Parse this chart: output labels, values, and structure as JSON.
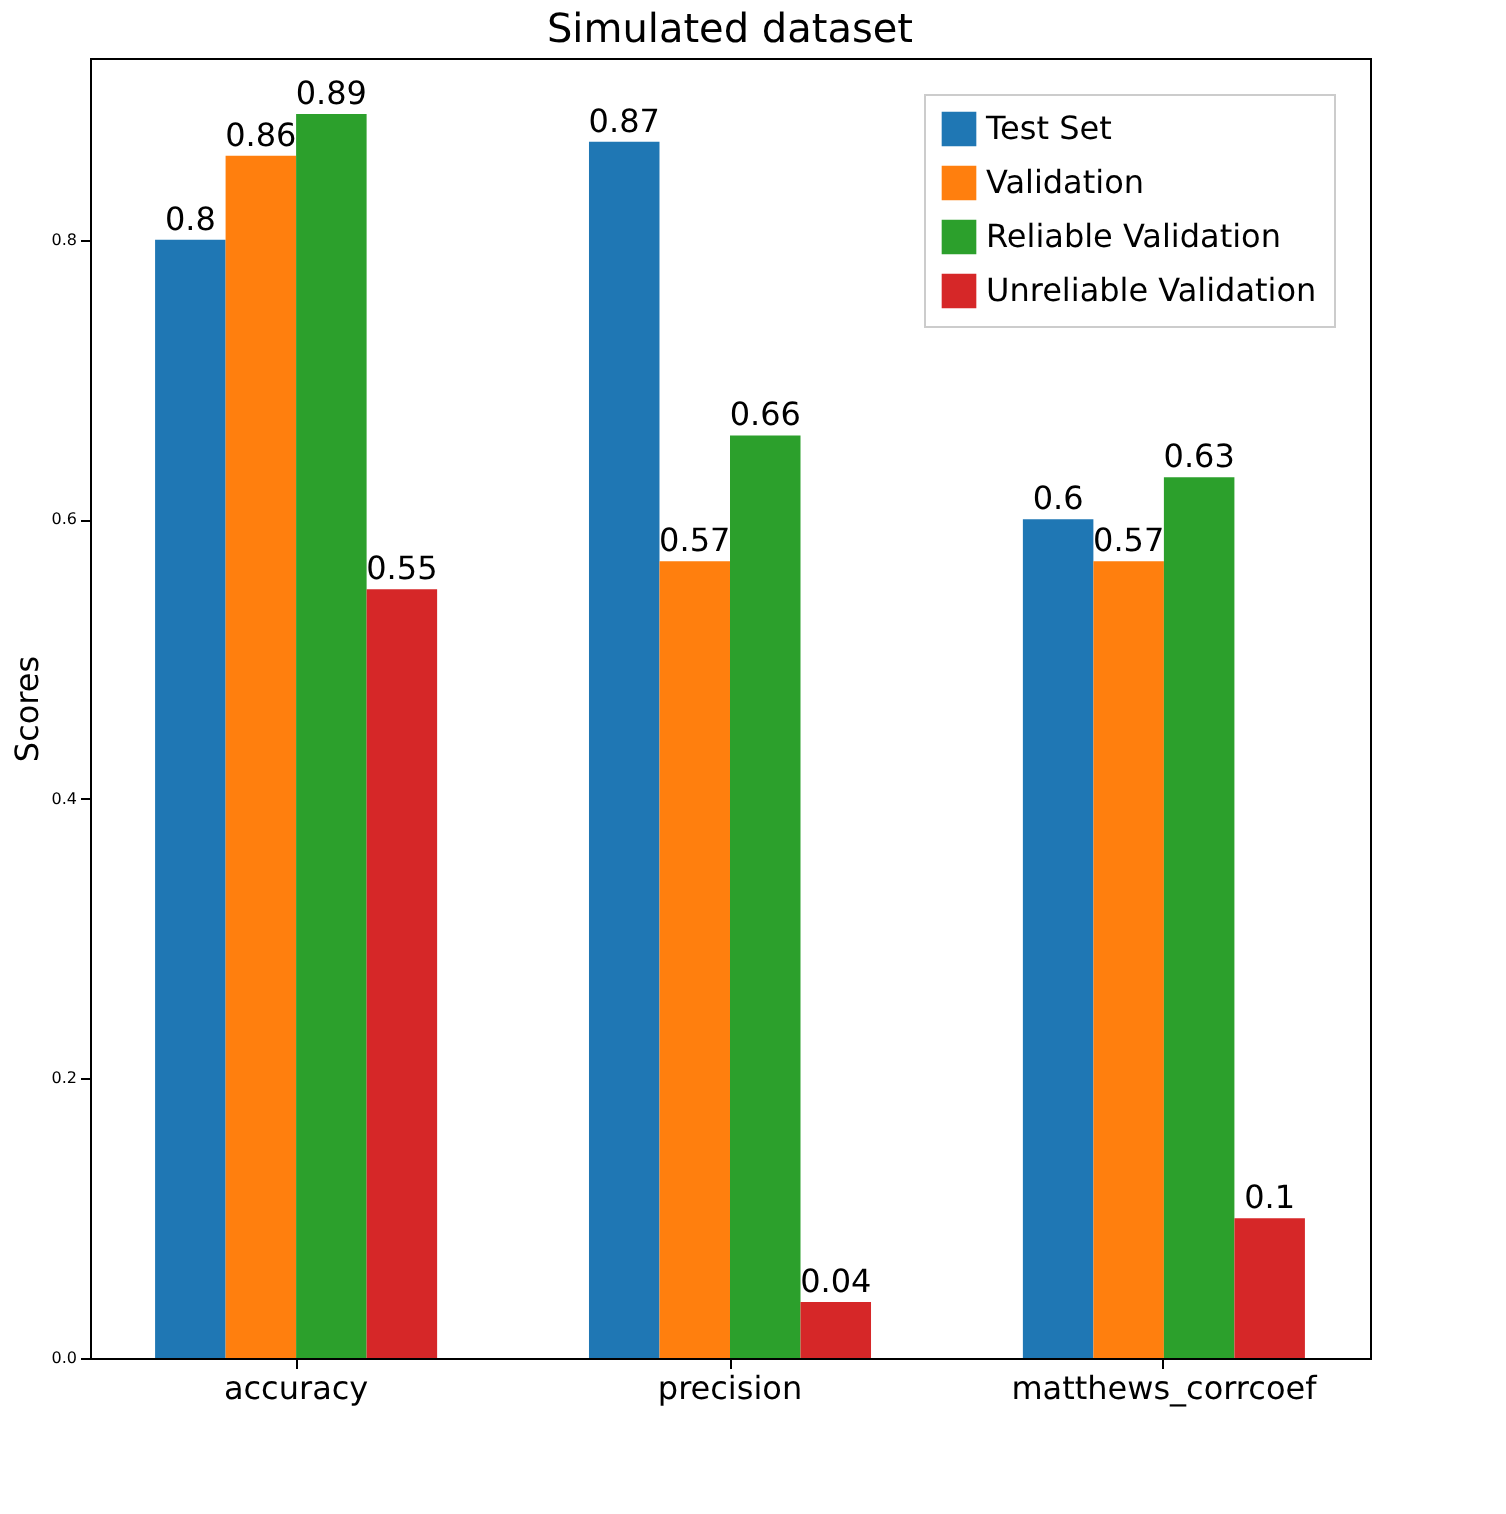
{
  "chart_data": {
    "type": "bar",
    "title": "Simulated dataset",
    "ylabel": "Scores",
    "categories": [
      "accuracy",
      "precision",
      "matthews_corrcoef"
    ],
    "series": [
      {
        "name": "Test Set",
        "color": "#1f77b4",
        "values": [
          0.8,
          0.87,
          0.6
        ]
      },
      {
        "name": "Validation",
        "color": "#ff7f0e",
        "values": [
          0.86,
          0.57,
          0.57
        ]
      },
      {
        "name": "Reliable Validation",
        "color": "#2ca02c",
        "values": [
          0.89,
          0.66,
          0.63
        ]
      },
      {
        "name": "Unreliable Validation",
        "color": "#d62728",
        "values": [
          0.55,
          0.04,
          0.1
        ]
      }
    ],
    "ylim": [
      0,
      0.93
    ],
    "yticks": [
      {
        "value": 0,
        "label": "0.0"
      },
      {
        "value": 0.2,
        "label": "0.2"
      },
      {
        "value": 0.4,
        "label": "0.4"
      },
      {
        "value": 0.6,
        "label": "0.6"
      },
      {
        "value": 0.8,
        "label": "0.8"
      }
    ],
    "data_labels": true,
    "grid": false,
    "legend": "top right"
  }
}
